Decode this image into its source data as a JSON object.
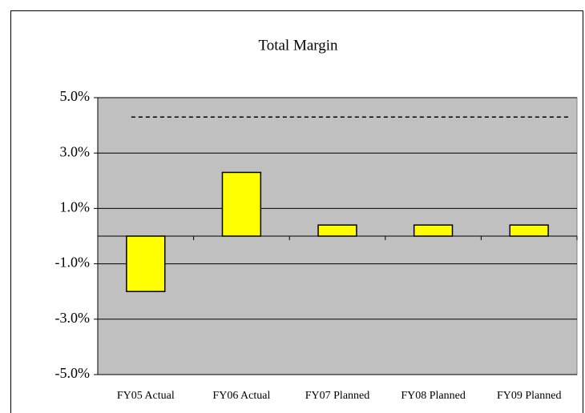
{
  "chart_data": {
    "type": "bar",
    "title": "Total Margin",
    "categories": [
      "FY05 Actual",
      "FY06 Actual",
      "FY07 Planned",
      "FY08 Planned",
      "FY09 Planned"
    ],
    "values": [
      -2.0,
      2.3,
      0.4,
      0.4,
      0.4
    ],
    "color": "#ffff00",
    "reference_line": 4.3,
    "ylim": [
      -5,
      5
    ],
    "yticks": [
      {
        "value": -5,
        "label": "-5.0%"
      },
      {
        "value": -3,
        "label": "-3.0%"
      },
      {
        "value": -1,
        "label": "-1.0%"
      },
      {
        "value": 1,
        "label": "1.0%"
      },
      {
        "value": 3,
        "label": "3.0%"
      },
      {
        "value": 5,
        "label": "5.0%"
      }
    ],
    "grid": true
  }
}
